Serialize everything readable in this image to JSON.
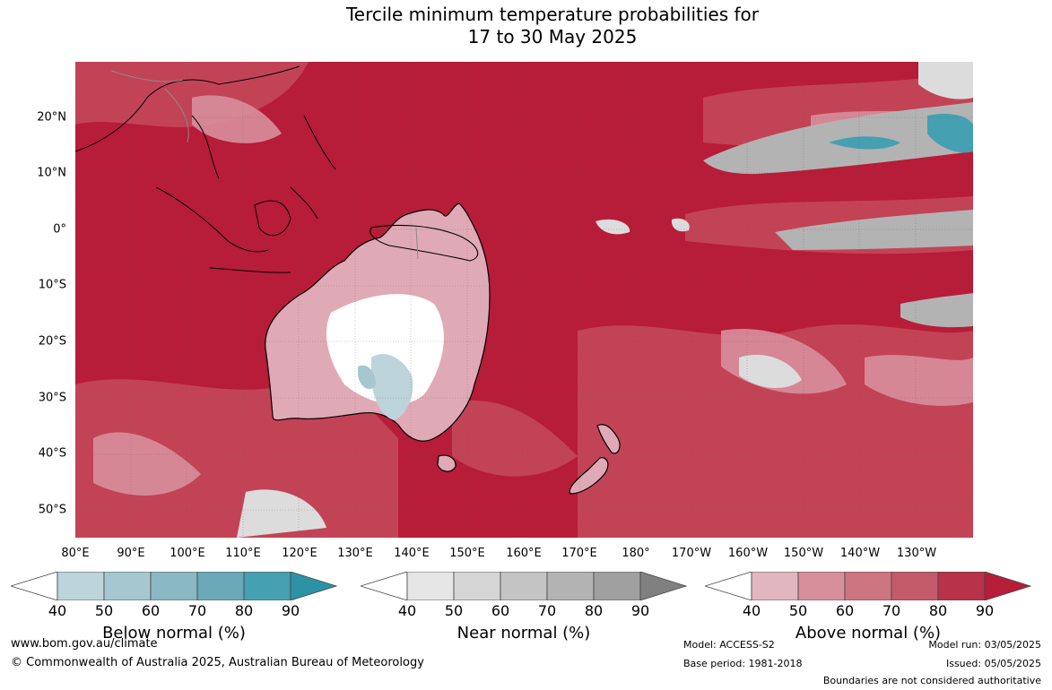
{
  "title": {
    "line1": "Tercile minimum temperature probabilities for",
    "line2": "17 to 30 May 2025"
  },
  "map": {
    "lat_labels": [
      "20°N",
      "10°N",
      "0°",
      "10°S",
      "20°S",
      "30°S",
      "40°S",
      "50°S"
    ],
    "lon_labels": [
      "80°E",
      "90°E",
      "100°E",
      "110°E",
      "120°E",
      "130°E",
      "140°E",
      "150°E",
      "160°E",
      "170°E",
      "180°",
      "170°W",
      "160°W",
      "150°W",
      "140°W",
      "130°W"
    ],
    "colors": {
      "above_dominant": "#b71c38",
      "ocean_base": "#b71c38"
    }
  },
  "colorbars": [
    {
      "label": "Below normal (%)",
      "ticks": [
        "40",
        "50",
        "60",
        "70",
        "80",
        "90"
      ],
      "colors": [
        "#ffffff",
        "#bcd4da",
        "#a6c7cf",
        "#8ab8c4",
        "#6aa9b8",
        "#45a0b1",
        "#2e92a6"
      ]
    },
    {
      "label": "Near normal (%)",
      "ticks": [
        "40",
        "50",
        "60",
        "70",
        "80",
        "90"
      ],
      "colors": [
        "#ffffff",
        "#e6e6e6",
        "#d5d5d5",
        "#c4c4c4",
        "#b3b3b3",
        "#a0a0a0",
        "#808080"
      ]
    },
    {
      "label": "Above normal (%)",
      "ticks": [
        "40",
        "50",
        "60",
        "70",
        "80",
        "90"
      ],
      "colors": [
        "#ffffff",
        "#e2b6bf",
        "#d88f9c",
        "#cd7580",
        "#c25a69",
        "#b8324a",
        "#b71c38"
      ]
    }
  ],
  "footer": {
    "url": "www.bom.gov.au/climate",
    "copyright": "© Commonwealth of Australia 2025, Australian Bureau of Meteorology",
    "model": "Model: ACCESS-S2",
    "base_period": "Base period: 1981-2018",
    "model_run": "Model run: 03/05/2025",
    "issued": "Issued: 05/05/2025",
    "disclaimer": "Boundaries are not considered authoritative"
  }
}
